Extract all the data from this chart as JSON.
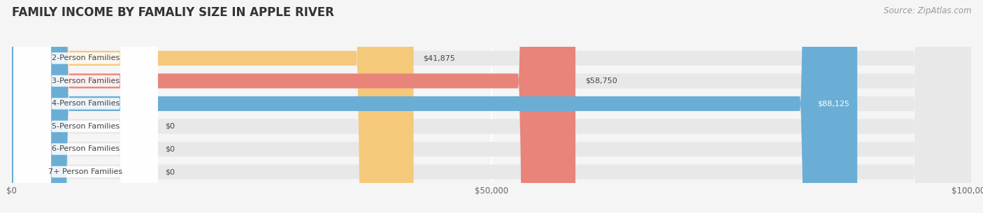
{
  "title": "FAMILY INCOME BY FAMALIY SIZE IN APPLE RIVER",
  "source": "Source: ZipAtlas.com",
  "categories": [
    "2-Person Families",
    "3-Person Families",
    "4-Person Families",
    "5-Person Families",
    "6-Person Families",
    "7+ Person Families"
  ],
  "values": [
    41875,
    58750,
    88125,
    0,
    0,
    0
  ],
  "bar_colors": [
    "#f5c97a",
    "#e8847a",
    "#6aaed6",
    "#c9a0c8",
    "#5dbfb0",
    "#a0aee8"
  ],
  "xlim": [
    0,
    100000
  ],
  "xticks": [
    0,
    50000,
    100000
  ],
  "xtick_labels": [
    "$0",
    "$50,000",
    "$100,000"
  ],
  "bg_color": "#f5f5f5",
  "bar_bg_color": "#e8e8e8",
  "title_fontsize": 12,
  "source_fontsize": 8.5,
  "label_fontsize": 8,
  "value_fontsize": 8,
  "bar_height": 0.65
}
